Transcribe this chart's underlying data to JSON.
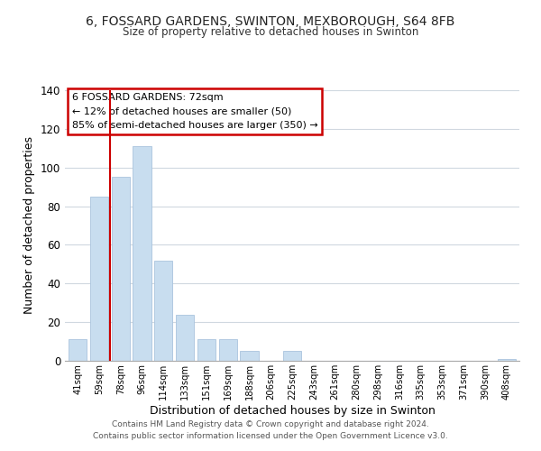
{
  "title": "6, FOSSARD GARDENS, SWINTON, MEXBOROUGH, S64 8FB",
  "subtitle": "Size of property relative to detached houses in Swinton",
  "xlabel": "Distribution of detached houses by size in Swinton",
  "ylabel": "Number of detached properties",
  "bar_labels": [
    "41sqm",
    "59sqm",
    "78sqm",
    "96sqm",
    "114sqm",
    "133sqm",
    "151sqm",
    "169sqm",
    "188sqm",
    "206sqm",
    "225sqm",
    "243sqm",
    "261sqm",
    "280sqm",
    "298sqm",
    "316sqm",
    "335sqm",
    "353sqm",
    "371sqm",
    "390sqm",
    "408sqm"
  ],
  "bar_values": [
    11,
    85,
    95,
    111,
    52,
    24,
    11,
    11,
    5,
    0,
    5,
    0,
    0,
    0,
    0,
    0,
    0,
    0,
    0,
    0,
    1
  ],
  "bar_color": "#c8ddef",
  "bar_edge_color": "#aac4de",
  "vline_color": "#cc0000",
  "vline_x": 1.5,
  "ylim": [
    0,
    140
  ],
  "yticks": [
    0,
    20,
    40,
    60,
    80,
    100,
    120,
    140
  ],
  "annotation_title": "6 FOSSARD GARDENS: 72sqm",
  "annotation_line1": "← 12% of detached houses are smaller (50)",
  "annotation_line2": "85% of semi-detached houses are larger (350) →",
  "annotation_box_color": "#ffffff",
  "annotation_box_edge": "#cc0000",
  "footer_line1": "Contains HM Land Registry data © Crown copyright and database right 2024.",
  "footer_line2": "Contains public sector information licensed under the Open Government Licence v3.0.",
  "background_color": "#ffffff",
  "grid_color": "#d0d8e0"
}
